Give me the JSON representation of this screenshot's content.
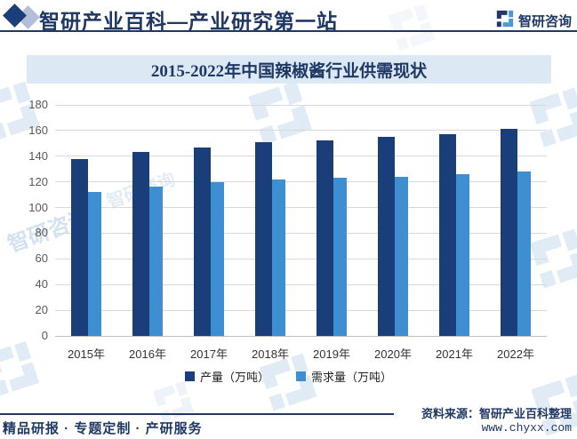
{
  "header": {
    "site_title": "智研产业百科—产业研究第一站",
    "brand_name": "智研咨询"
  },
  "banner": {
    "title": "2015-2022年中国辣椒酱行业供需现状"
  },
  "chart_data": {
    "type": "bar",
    "title": "2015-2022年中国辣椒酱行业供需现状",
    "categories": [
      "2015年",
      "2016年",
      "2017年",
      "2018年",
      "2019年",
      "2020年",
      "2021年",
      "2022年"
    ],
    "series": [
      {
        "name": "产量（万吨）",
        "color": "#1a3e7a",
        "values": [
          138,
          143,
          147,
          151,
          152,
          155,
          157,
          161
        ]
      },
      {
        "name": "需求量（万吨）",
        "color": "#3e8ed2",
        "values": [
          112,
          116,
          120,
          122,
          123,
          124,
          126,
          128
        ]
      }
    ],
    "xlabel": "",
    "ylabel": "",
    "ylim": [
      0,
      180
    ],
    "yticks": [
      0,
      20,
      40,
      60,
      80,
      100,
      120,
      140,
      160,
      180
    ],
    "grid": true,
    "legend_position": "bottom"
  },
  "footer": {
    "services": "精品研报 · 专题定制 · 产研服务",
    "source": "资料来源：智研产业百科整理",
    "website": "www.chyxx.com"
  },
  "watermark": {
    "text": "智研咨询"
  },
  "colors": {
    "accent": "#1f3864",
    "banner_bg": "#dce9f5",
    "production_bar": "#1a3e7a",
    "demand_bar": "#3e8ed2"
  }
}
